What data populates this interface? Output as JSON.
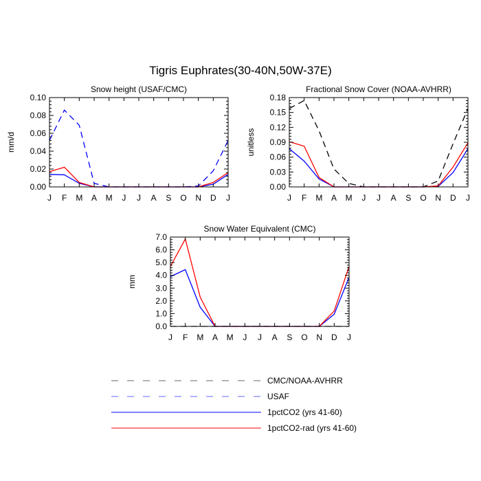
{
  "figure": {
    "title": "Tigris Euphrates(30-40N,50W-37E)"
  },
  "chart_data": [
    {
      "type": "line",
      "title": "Snow height (USAF/CMC)",
      "xlabel": "",
      "ylabel": "mm/d",
      "categories": [
        "J",
        "F",
        "M",
        "A",
        "M",
        "J",
        "J",
        "A",
        "S",
        "O",
        "N",
        "D",
        "J"
      ],
      "ylim": [
        0,
        0.1
      ],
      "yticks": [
        0.0,
        0.02,
        0.04,
        0.06,
        0.08,
        0.1
      ],
      "ytick_labels": [
        "0.00",
        "0.02",
        "0.04",
        "0.06",
        "0.08",
        "0.10"
      ],
      "series": [
        {
          "name": "USAF",
          "color": "#0000ff",
          "dash": "dashed",
          "values": [
            0.052,
            0.086,
            0.069,
            0.004,
            0.0,
            0.0,
            0.0,
            0.0,
            0.0,
            0.0,
            0.001,
            0.018,
            0.052
          ]
        },
        {
          "name": "1pctCO2 (yrs 41-60)",
          "color": "#0000ff",
          "dash": "solid",
          "values": [
            0.014,
            0.0135,
            0.004,
            0.0,
            0.0,
            0.0,
            0.0,
            0.0,
            0.0,
            0.0,
            0.0,
            0.003,
            0.014
          ]
        },
        {
          "name": "1pctCO2-rad (yrs 41-60)",
          "color": "#ff0000",
          "dash": "solid",
          "values": [
            0.017,
            0.022,
            0.005,
            0.0,
            0.0,
            0.0,
            0.0,
            0.0,
            0.0,
            0.0,
            0.0,
            0.005,
            0.016
          ]
        }
      ]
    },
    {
      "type": "line",
      "title": "Fractional Snow Cover (NOAA-AVHRR)",
      "xlabel": "",
      "ylabel": "unitless",
      "categories": [
        "J",
        "F",
        "M",
        "A",
        "M",
        "J",
        "J",
        "A",
        "S",
        "O",
        "N",
        "D",
        "J"
      ],
      "ylim": [
        0,
        0.18
      ],
      "yticks": [
        0.0,
        0.03,
        0.06,
        0.09,
        0.12,
        0.15,
        0.18
      ],
      "ytick_labels": [
        "0.00",
        "0.03",
        "0.06",
        "0.09",
        "0.12",
        "0.15",
        "0.18"
      ],
      "series": [
        {
          "name": "CMC/NOAA-AVHRR",
          "color": "#000000",
          "dash": "dashed",
          "values": [
            0.158,
            0.174,
            0.113,
            0.036,
            0.007,
            0.0,
            0.0,
            0.0,
            0.0,
            0.0,
            0.012,
            0.087,
            0.158
          ]
        },
        {
          "name": "1pctCO2 (yrs 41-60)",
          "color": "#0000ff",
          "dash": "solid",
          "values": [
            0.077,
            0.052,
            0.016,
            0.0,
            0.0,
            0.0,
            0.0,
            0.0,
            0.0,
            0.0,
            0.001,
            0.029,
            0.077
          ]
        },
        {
          "name": "1pctCO2-rad (yrs 41-60)",
          "color": "#ff0000",
          "dash": "solid",
          "values": [
            0.091,
            0.082,
            0.019,
            0.0,
            0.0,
            0.0,
            0.0,
            0.0,
            0.0,
            0.0,
            0.002,
            0.04,
            0.089
          ]
        }
      ]
    },
    {
      "type": "line",
      "title": "Snow Water Equivalent (CMC)",
      "xlabel": "",
      "ylabel": "mm",
      "categories": [
        "J",
        "F",
        "M",
        "A",
        "M",
        "J",
        "J",
        "A",
        "S",
        "O",
        "N",
        "D",
        "J"
      ],
      "ylim": [
        0,
        7
      ],
      "yticks": [
        0,
        1,
        2,
        3,
        4,
        5,
        6,
        7
      ],
      "ytick_labels": [
        "0.0",
        "1.0",
        "2.0",
        "3.0",
        "4.0",
        "5.0",
        "6.0",
        "7.0"
      ],
      "series": [
        {
          "name": "CMC/NOAA-AVHRR",
          "color": "#000000",
          "dash": "dashed",
          "values": [
            0,
            0,
            0,
            0,
            0,
            0,
            0,
            0,
            0,
            0,
            0,
            0,
            0
          ]
        },
        {
          "name": "1pctCO2 (yrs 41-60)",
          "color": "#0000ff",
          "dash": "solid",
          "values": [
            3.9,
            4.45,
            1.5,
            0.0,
            0.0,
            0.0,
            0.0,
            0.0,
            0.0,
            0.0,
            0.0,
            0.95,
            3.85
          ]
        },
        {
          "name": "1pctCO2-rad (yrs 41-60)",
          "color": "#ff0000",
          "dash": "solid",
          "values": [
            4.7,
            6.85,
            2.3,
            0.0,
            0.0,
            0.0,
            0.0,
            0.0,
            0.0,
            0.0,
            0.0,
            1.2,
            4.7
          ]
        }
      ]
    }
  ],
  "legend": {
    "items": [
      {
        "label": "CMC/NOAA-AVHRR",
        "color": "#000000",
        "dash": "dashed"
      },
      {
        "label": "USAF",
        "color": "#0000ff",
        "dash": "dashed"
      },
      {
        "label": "1pctCO2 (yrs 41-60)",
        "color": "#0000ff",
        "dash": "solid"
      },
      {
        "label": "1pctCO2-rad (yrs 41-60)",
        "color": "#ff0000",
        "dash": "solid"
      }
    ]
  }
}
